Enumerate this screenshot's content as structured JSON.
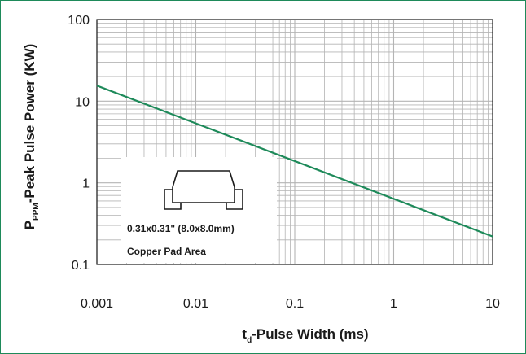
{
  "chart_data": {
    "type": "line",
    "xscale": "log",
    "yscale": "log",
    "xlim": [
      0.001,
      10
    ],
    "ylim": [
      0.1,
      100
    ],
    "grid": true,
    "xlabel_main": "t",
    "xlabel_sub": "d",
    "xlabel_rest": "-Pulse Width (ms)",
    "ylabel_main": "P",
    "ylabel_sub": "PPM",
    "ylabel_rest": "-Peak Pulse Power (KW)",
    "x_ticks": [
      {
        "value": 0.001,
        "label": "0.001"
      },
      {
        "value": 0.01,
        "label": "0.01"
      },
      {
        "value": 0.1,
        "label": "0.1"
      },
      {
        "value": 1,
        "label": "1"
      },
      {
        "value": 10,
        "label": "10"
      }
    ],
    "y_ticks": [
      {
        "value": 100,
        "label": "100"
      },
      {
        "value": 10,
        "label": "10"
      },
      {
        "value": 1,
        "label": "1"
      },
      {
        "value": 0.1,
        "label": "0.1"
      }
    ],
    "series": [
      {
        "color": "#1e8a5a",
        "x": [
          0.001,
          10
        ],
        "y": [
          15.5,
          0.22
        ]
      }
    ],
    "inset": {
      "line1": "0.31x0.31\" (8.0x8.0mm)",
      "line2": "Copper Pad Area"
    }
  },
  "colors": {
    "frame": "#1e8a5a",
    "grid": "#b4b4b4",
    "axis": "#1a1a1a"
  }
}
